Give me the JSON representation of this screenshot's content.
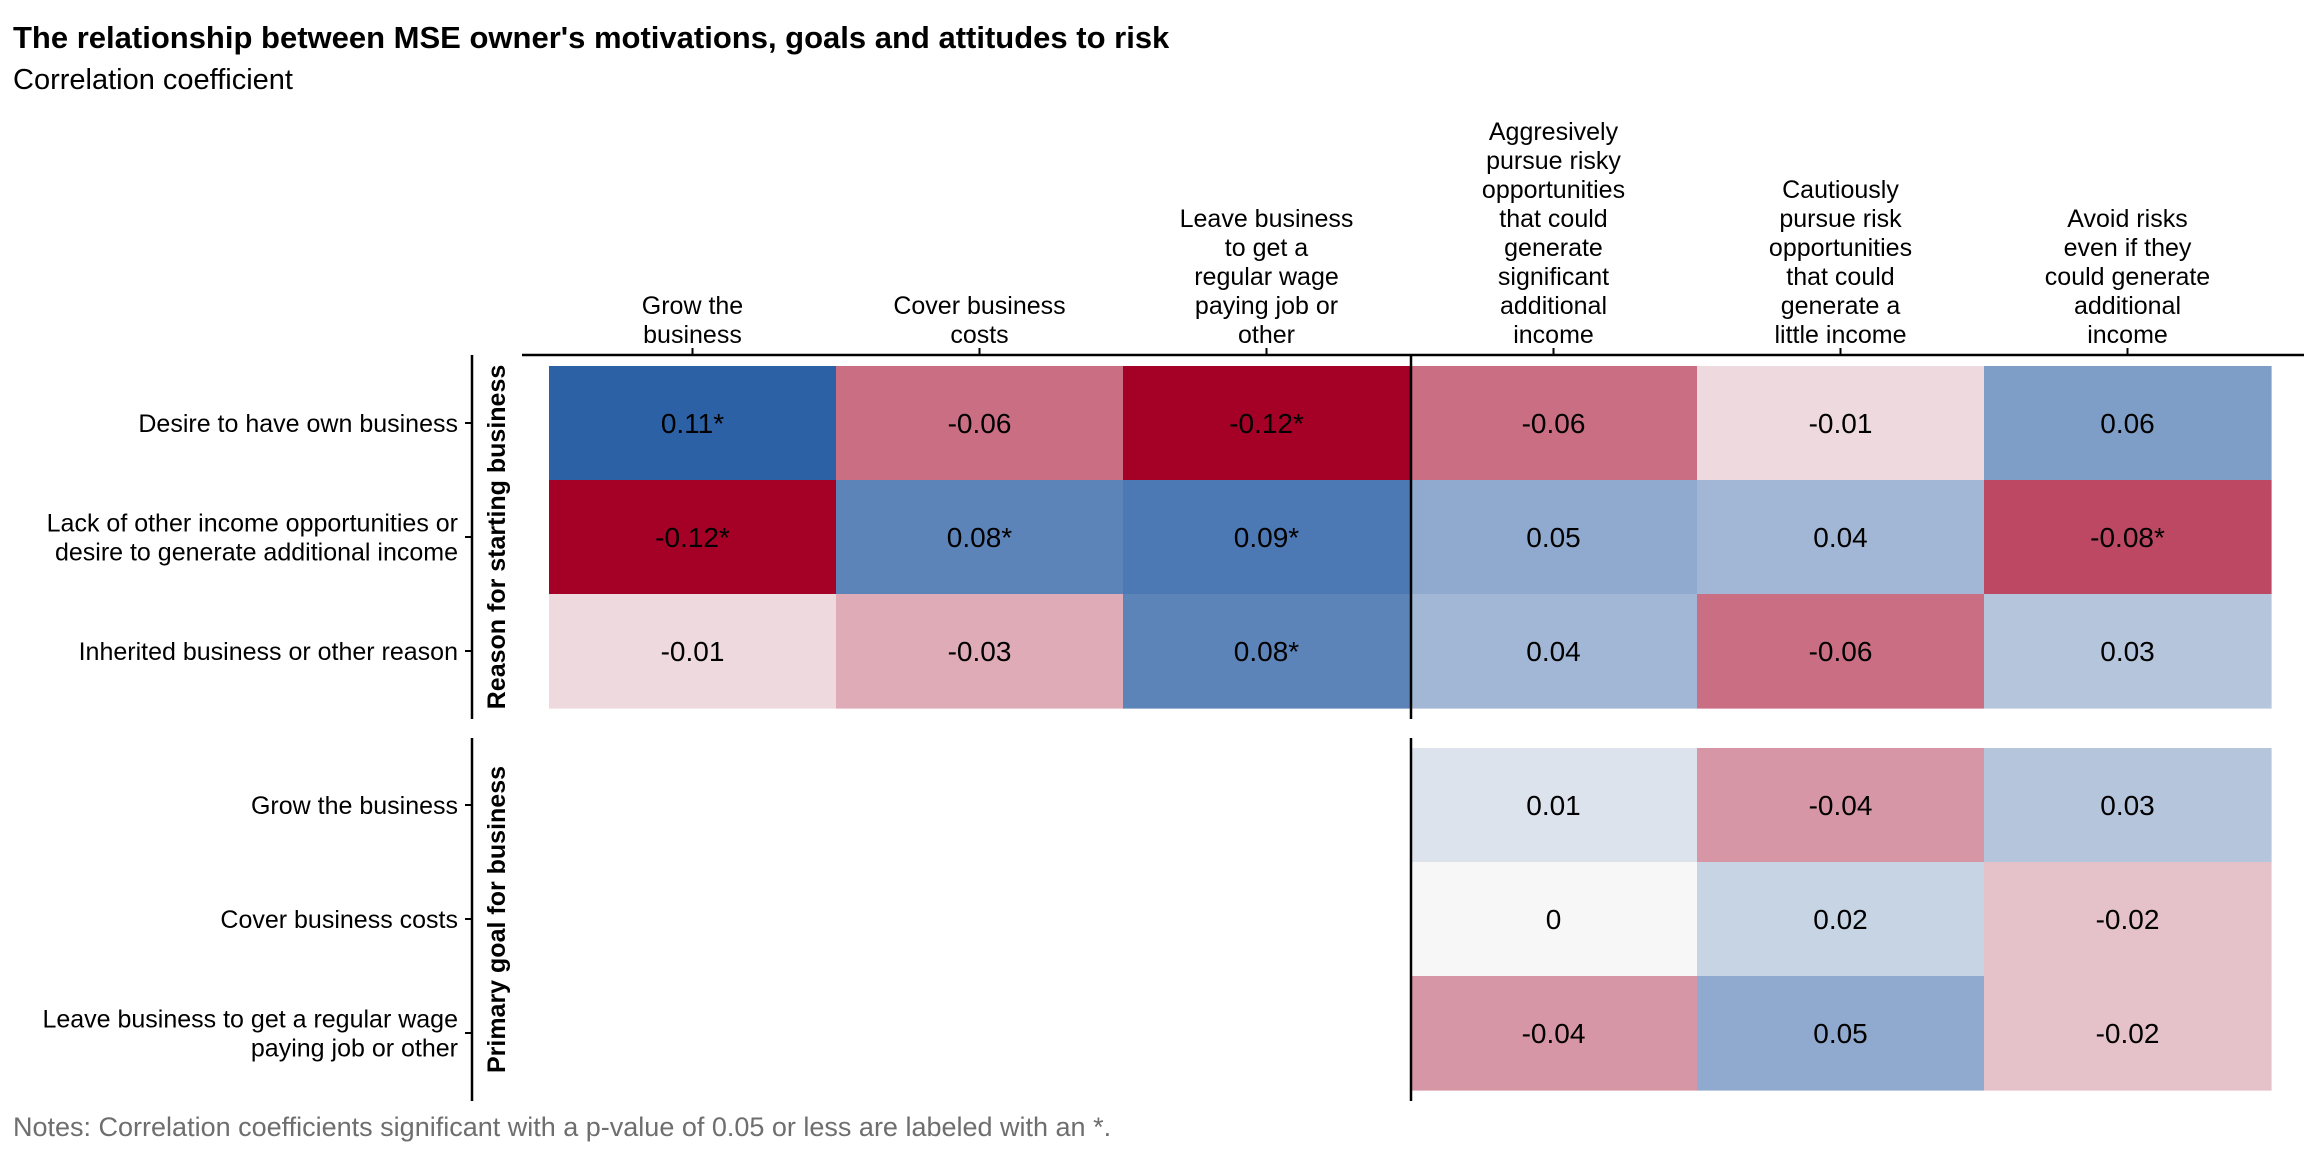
{
  "title": "The relationship between MSE owner's motivations, goals and attitudes to risk",
  "subtitle": "Correlation coefficient",
  "notes": "Notes: Correlation coefficients significant with a p-value of 0.05 or less are labeled with an *.",
  "colors": {
    "strong_negative": "#a50026",
    "neutral": "#f7f7f7",
    "strong_positive": "#1c55a0",
    "axis": "#000000",
    "note_text": "#6e6e6e"
  },
  "chart_data": {
    "type": "heatmap",
    "columns": [
      "Grow the business",
      "Cover business costs",
      "Leave business to get a regular wage paying job or other",
      "Aggresively pursue risky opportunities that could generate significant additional income",
      "Cautiously pursue risk opportunities that could generate a little income",
      "Avoid risks even if they could generate additional income"
    ],
    "column_label_lines": [
      [
        "Grow the",
        "business"
      ],
      [
        "Cover business",
        "costs"
      ],
      [
        "Leave business",
        "to get a",
        "regular wage",
        "paying job or",
        "other"
      ],
      [
        "Aggresively",
        "pursue risky",
        "opportunities",
        "that could",
        "generate",
        "significant",
        "additional",
        "income"
      ],
      [
        "Cautiously",
        "pursue risk",
        "opportunities",
        "that could",
        "generate a",
        "little income"
      ],
      [
        "Avoid risks",
        "even if they",
        "could generate",
        "additional",
        "income"
      ]
    ],
    "row_groups": [
      {
        "name": "Reason for starting business",
        "rows": [
          {
            "label": "Desire to have own business",
            "label_lines": [
              "Desire to have own business"
            ],
            "values": [
              0.11,
              -0.06,
              -0.12,
              -0.06,
              -0.01,
              0.06
            ],
            "significant": [
              true,
              false,
              true,
              false,
              false,
              false
            ],
            "display": [
              "0.11*",
              "-0.06",
              "-0.12*",
              "-0.06",
              "-0.01",
              "0.06"
            ]
          },
          {
            "label": "Lack of other income opportunities or desire to generate additional income",
            "label_lines": [
              "Lack of other income opportunities or",
              "desire to generate additional income"
            ],
            "values": [
              -0.12,
              0.08,
              0.09,
              0.05,
              0.04,
              -0.08
            ],
            "significant": [
              true,
              true,
              true,
              false,
              false,
              true
            ],
            "display": [
              "-0.12*",
              "0.08*",
              "0.09*",
              "0.05",
              "0.04",
              "-0.08*"
            ]
          },
          {
            "label": "Inherited business or other reason",
            "label_lines": [
              "Inherited business or other reason"
            ],
            "values": [
              -0.01,
              -0.03,
              0.08,
              0.04,
              -0.06,
              0.03
            ],
            "significant": [
              false,
              false,
              true,
              false,
              false,
              false
            ],
            "display": [
              "-0.01",
              "-0.03",
              "0.08*",
              "0.04",
              "-0.06",
              "0.03"
            ]
          }
        ]
      },
      {
        "name": "Primary goal for business",
        "rows": [
          {
            "label": "Grow the business",
            "label_lines": [
              "Grow the business"
            ],
            "values": [
              null,
              null,
              null,
              0.01,
              -0.04,
              0.03
            ],
            "significant": [
              false,
              false,
              false,
              false,
              false,
              false
            ],
            "display": [
              "",
              "",
              "",
              "0.01",
              "-0.04",
              "0.03"
            ]
          },
          {
            "label": "Cover business costs",
            "label_lines": [
              "Cover business costs"
            ],
            "values": [
              null,
              null,
              null,
              0,
              0.02,
              -0.02
            ],
            "significant": [
              false,
              false,
              false,
              false,
              false,
              false
            ],
            "display": [
              "",
              "",
              "",
              "0",
              "0.02",
              "-0.02"
            ]
          },
          {
            "label": "Leave business to get a regular wage paying job or other",
            "label_lines": [
              "Leave business to get a regular wage",
              "paying job or other"
            ],
            "values": [
              null,
              null,
              null,
              -0.04,
              0.05,
              -0.02
            ],
            "significant": [
              false,
              false,
              false,
              false,
              false,
              false
            ],
            "display": [
              "",
              "",
              "",
              "-0.04",
              "0.05",
              "-0.02"
            ]
          }
        ]
      }
    ],
    "color_scale": {
      "palette": "RdBu",
      "domain": [
        -0.12,
        0.12
      ]
    },
    "legend": "none",
    "grid": false
  }
}
